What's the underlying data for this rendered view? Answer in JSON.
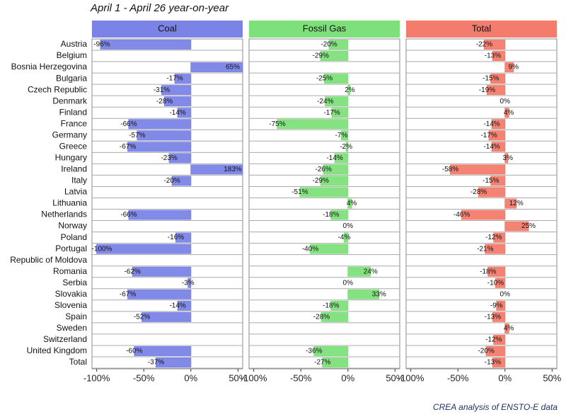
{
  "chart_data": {
    "type": "bar",
    "orientation": "horizontal",
    "title": "April 1 - April 26 year-on-year",
    "caption": "CREA analysis of ENSTO-E data",
    "categories": [
      "Austria",
      "Belgium",
      "Bosnia Herzegovina",
      "Bulgaria",
      "Czech Republic",
      "Denmark",
      "Finland",
      "France",
      "Germany",
      "Greece",
      "Hungary",
      "Ireland",
      "Italy",
      "Latvia",
      "Lithuania",
      "Netherlands",
      "Norway",
      "Poland",
      "Portugal",
      "Republic of Moldova",
      "Romania",
      "Serbia",
      "Slovakia",
      "Slovenia",
      "Spain",
      "Sweden",
      "Switzerland",
      "United Kingdom",
      "Total"
    ],
    "series": [
      {
        "name": "Coal",
        "color": "#7b84e6",
        "values": [
          -96,
          null,
          65,
          -17,
          -31,
          -28,
          -14,
          -66,
          -57,
          -67,
          -23,
          183,
          -20,
          null,
          null,
          -66,
          null,
          -16,
          -100,
          null,
          -62,
          -3,
          -67,
          -14,
          -52,
          null,
          null,
          -60,
          -37
        ],
        "value_labels": [
          "-96%",
          null,
          "65%",
          "-17%",
          "-31%",
          "-28%",
          "-14%",
          "-66%",
          "-57%",
          "-67%",
          "-23%",
          "183%",
          "-20%",
          null,
          null,
          "-66%",
          null,
          "-16%",
          "-100%",
          null,
          "-62%",
          "-3%",
          "-67%",
          "-14%",
          "-52%",
          null,
          null,
          "-60%",
          "-37%"
        ]
      },
      {
        "name": "Fossil Gas",
        "color": "#7ee07a",
        "values": [
          -20,
          -29,
          null,
          -25,
          2,
          -24,
          -17,
          -75,
          -7,
          -2,
          -14,
          -26,
          -29,
          -51,
          4,
          -18,
          0,
          -4,
          -40,
          null,
          24,
          0,
          33,
          -18,
          -28,
          null,
          null,
          -36,
          -27
        ],
        "value_labels": [
          "-20%",
          "-29%",
          null,
          "-25%",
          "2%",
          "-24%",
          "-17%",
          "-75%",
          "-7%",
          "-2%",
          "-14%",
          "-26%",
          "-29%",
          "-51%",
          "4%",
          "-18%",
          "0%",
          "-4%",
          "-40%",
          null,
          "24%",
          "0%",
          "33%",
          "-18%",
          "-28%",
          null,
          null,
          "-36%",
          "-27%"
        ]
      },
      {
        "name": "Total",
        "color": "#f47c6c",
        "values": [
          -22,
          -13,
          9,
          -15,
          -19,
          0,
          4,
          -14,
          -17,
          -14,
          3,
          -58,
          -15,
          -28,
          12,
          -46,
          25,
          -12,
          -21,
          null,
          -18,
          -10,
          0,
          -9,
          -13,
          4,
          -12,
          -20,
          -13
        ],
        "value_labels": [
          "-22%",
          "-13%",
          "9%",
          "-15%",
          "-19%",
          "0%",
          "4%",
          "-14%",
          "-17%",
          "-14%",
          "3%",
          "-58%",
          "-15%",
          "-28%",
          "12%",
          "-46%",
          "25%",
          "-12%",
          "-21%",
          null,
          "-18%",
          "-10%",
          "0%",
          "-9%",
          "-13%",
          "4%",
          "-12%",
          "-20%",
          "-13%"
        ]
      }
    ],
    "xlim": [
      -105,
      55
    ],
    "xticks": [
      {
        "value": -100,
        "label": "-100%"
      },
      {
        "value": -50,
        "label": "-50%"
      },
      {
        "value": 0,
        "label": "0%"
      },
      {
        "value": 50,
        "label": "50%"
      }
    ],
    "grid": true
  }
}
